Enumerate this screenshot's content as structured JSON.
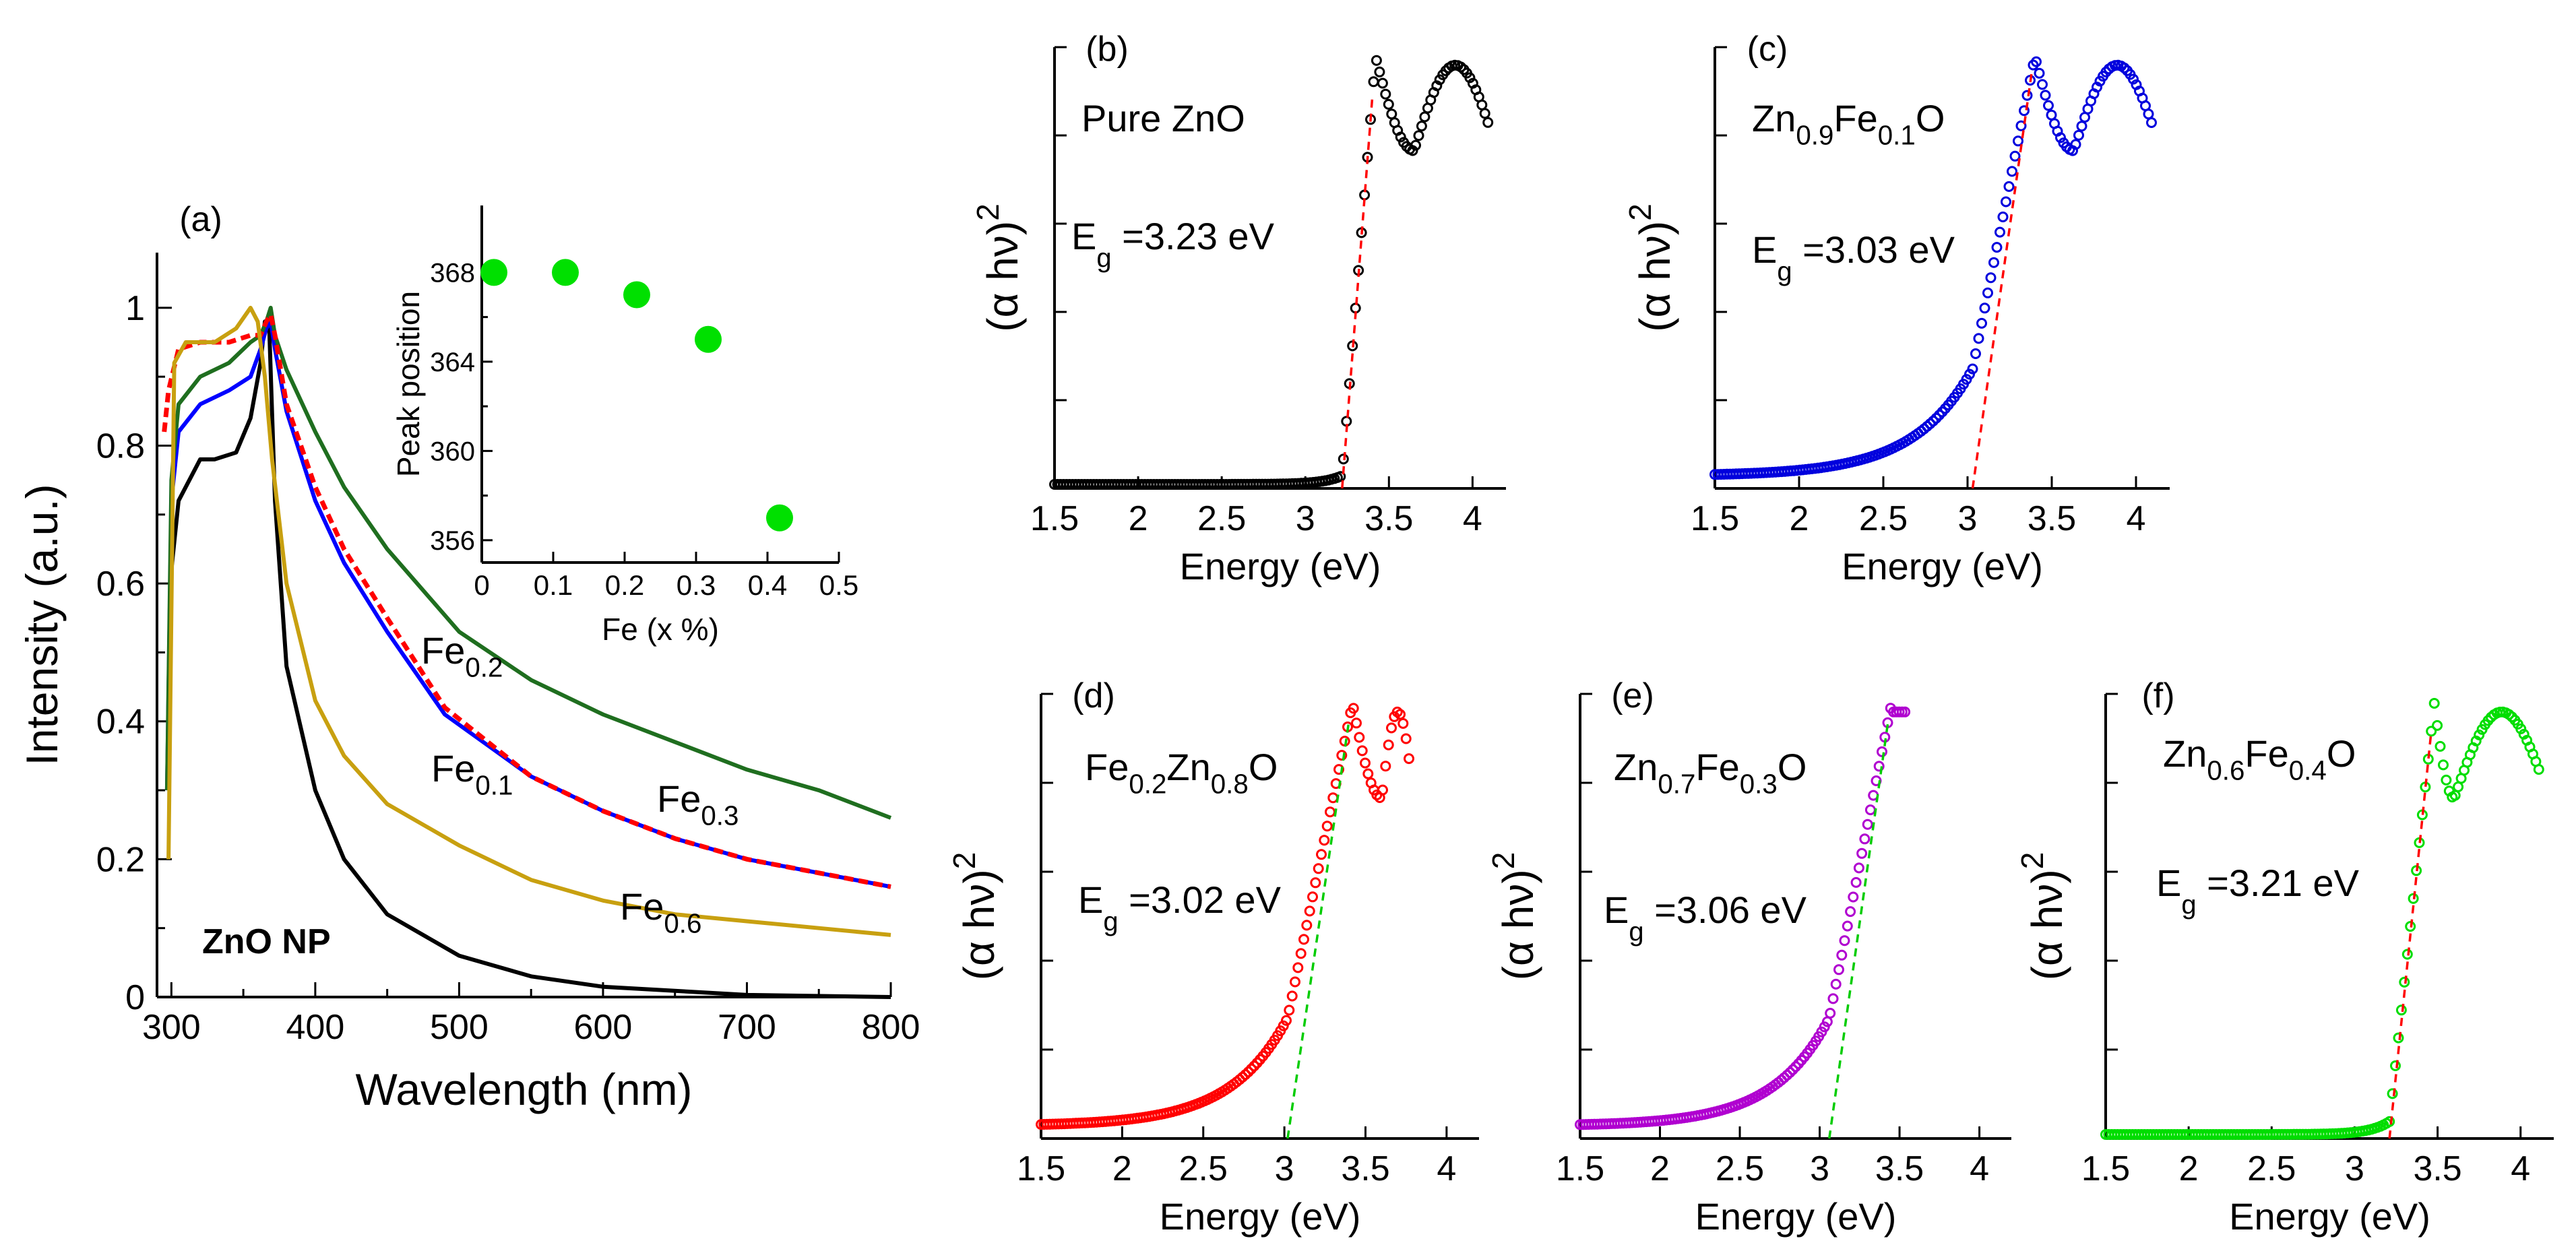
{
  "figure": {
    "panels": [
      {
        "id": "a",
        "label": "(a)",
        "xlabel": "Wavelength (nm)",
        "ylabel": "Intensity (a.u.)",
        "xticks": [
          "300",
          "400",
          "500",
          "600",
          "700",
          "800"
        ],
        "yticks": [
          "0",
          "0.2",
          "0.4",
          "0.6",
          "0.8",
          "1"
        ],
        "sample_label": "ZnO NP"
      },
      {
        "id": "inset",
        "xlabel": "Fe (x %)",
        "ylabel": "Peak position",
        "xticks": [
          "0",
          "0.1",
          "0.2",
          "0.3",
          "0.4",
          "0.5"
        ],
        "yticks": [
          "356",
          "360",
          "364",
          "368"
        ]
      },
      {
        "id": "b",
        "label": "(b)",
        "sample": "Pure ZnO",
        "eg": "3.23 eV",
        "xlabel": "Energy (eV)",
        "ylabel": "(α hν)",
        "xticks": [
          "1.5",
          "2",
          "2.5",
          "3",
          "3.5",
          "4"
        ]
      },
      {
        "id": "c",
        "label": "(c)",
        "sample_parts": [
          "Zn",
          "0.9",
          "Fe",
          "0.1",
          "O"
        ],
        "eg": "3.03 eV",
        "xlabel": "Energy (eV)",
        "ylabel": "(α hν)",
        "xticks": [
          "1.5",
          "2",
          "2.5",
          "3",
          "3.5",
          "4"
        ]
      },
      {
        "id": "d",
        "label": "(d)",
        "sample_parts": [
          "Fe",
          "0.2",
          "Zn",
          "0.8",
          "O"
        ],
        "eg": "3.02 eV",
        "xlabel": "Energy (eV)",
        "ylabel": "(α hν)",
        "xticks": [
          "1.5",
          "2",
          "2.5",
          "3",
          "3.5",
          "4"
        ]
      },
      {
        "id": "e",
        "label": "(e)",
        "sample_parts": [
          "Zn",
          "0.7",
          "Fe",
          "0.3",
          "O"
        ],
        "eg": "3.06 eV",
        "xlabel": "Energy (eV)",
        "ylabel": "(α hν)",
        "xticks": [
          "1.5",
          "2",
          "2.5",
          "3",
          "3.5",
          "4"
        ]
      },
      {
        "id": "f",
        "label": "(f)",
        "sample_parts": [
          "Zn",
          "0.6",
          "Fe",
          "0.4",
          "O"
        ],
        "eg": "3.21 eV",
        "xlabel": "Energy (eV)",
        "ylabel": "(α hν)",
        "xticks": [
          "1.5",
          "2",
          "2.5",
          "3",
          "3.5",
          "4"
        ]
      }
    ],
    "eg_prefix": "E",
    "eg_sub": "g",
    "eg_eq": " =",
    "sq": "2"
  },
  "chart_data": [
    {
      "type": "line",
      "title": "(a)",
      "xlabel": "Wavelength (nm)",
      "ylabel": "Intensity (a.u.)",
      "xlim": [
        290,
        800
      ],
      "ylim": [
        0,
        1.08
      ],
      "series": [
        {
          "name": "ZnO",
          "color": "#000000",
          "x": [
            298,
            300,
            305,
            320,
            330,
            345,
            355,
            362,
            365,
            368,
            372,
            380,
            400,
            420,
            450,
            500,
            550,
            600,
            700,
            800
          ],
          "y": [
            0.3,
            0.62,
            0.72,
            0.78,
            0.78,
            0.79,
            0.84,
            0.92,
            0.98,
            0.97,
            0.72,
            0.48,
            0.3,
            0.2,
            0.12,
            0.06,
            0.03,
            0.015,
            0.003,
            0.0
          ]
        },
        {
          "name": "Fe0.1",
          "color": "#0000ff",
          "x": [
            297,
            300,
            305,
            320,
            340,
            355,
            362,
            366,
            369,
            372,
            380,
            400,
            420,
            450,
            490,
            550,
            600,
            650,
            700,
            750,
            800
          ],
          "y": [
            0.3,
            0.72,
            0.82,
            0.86,
            0.88,
            0.9,
            0.94,
            0.97,
            0.98,
            0.94,
            0.85,
            0.72,
            0.63,
            0.53,
            0.41,
            0.32,
            0.27,
            0.23,
            0.2,
            0.18,
            0.16
          ]
        },
        {
          "name": "Fe0.2",
          "color": "#1f6e1f",
          "x": [
            297,
            300,
            305,
            320,
            340,
            355,
            362,
            366,
            369,
            372,
            380,
            400,
            420,
            450,
            500,
            550,
            600,
            650,
            700,
            750,
            800
          ],
          "y": [
            0.3,
            0.75,
            0.86,
            0.9,
            0.92,
            0.95,
            0.96,
            0.98,
            1.0,
            0.96,
            0.91,
            0.82,
            0.74,
            0.65,
            0.53,
            0.46,
            0.41,
            0.37,
            0.33,
            0.3,
            0.26
          ]
        },
        {
          "name": "Fe0.3",
          "color": "#ff0000",
          "x": [
            295,
            298,
            305,
            320,
            340,
            355,
            362,
            366,
            369,
            372,
            380,
            400,
            420,
            450,
            490,
            550,
            600,
            650,
            700,
            750,
            800
          ],
          "y": [
            0.82,
            0.88,
            0.94,
            0.95,
            0.95,
            0.96,
            0.96,
            0.98,
            0.99,
            0.96,
            0.86,
            0.74,
            0.65,
            0.55,
            0.42,
            0.32,
            0.27,
            0.23,
            0.2,
            0.18,
            0.16
          ]
        },
        {
          "name": "Fe0.6",
          "color": "#c8a010",
          "x": [
            298,
            302,
            310,
            330,
            345,
            355,
            360,
            365,
            370,
            380,
            400,
            420,
            450,
            500,
            550,
            600,
            650,
            700,
            750,
            800
          ],
          "y": [
            0.2,
            0.92,
            0.95,
            0.95,
            0.97,
            1.0,
            0.98,
            0.9,
            0.78,
            0.6,
            0.43,
            0.35,
            0.28,
            0.22,
            0.17,
            0.14,
            0.12,
            0.11,
            0.1,
            0.09
          ]
        }
      ],
      "annotations": [
        "Fe0.2",
        "Fe0.1",
        "Fe0.3",
        "Fe0.6",
        "ZnO NP"
      ]
    },
    {
      "type": "scatter",
      "title": "inset",
      "xlabel": "Fe (x %)",
      "ylabel": "Peak position",
      "xlim": [
        0,
        0.5
      ],
      "ylim": [
        355,
        371
      ],
      "x": [
        0.0,
        0.1,
        0.2,
        0.3,
        0.4
      ],
      "y": [
        368,
        368,
        367,
        365,
        357
      ],
      "color": "#00e000"
    },
    {
      "type": "scatter",
      "title": "(b) Pure ZnO",
      "xlabel": "Energy (eV)",
      "ylabel": "(αhν)^2",
      "xlim": [
        1.5,
        4.1
      ],
      "eg": 3.23,
      "color": "#000000",
      "fit_color": "#ff0000"
    },
    {
      "type": "scatter",
      "title": "(c) Zn0.9Fe0.1O",
      "xlabel": "Energy (eV)",
      "ylabel": "(αhν)^2",
      "xlim": [
        1.5,
        4.1
      ],
      "eg": 3.03,
      "color": "#0000dd",
      "fit_color": "#ff0000"
    },
    {
      "type": "scatter",
      "title": "(d) Fe0.2Zn0.8O",
      "xlabel": "Energy (eV)",
      "ylabel": "(αhν)^2",
      "xlim": [
        1.5,
        4.1
      ],
      "eg": 3.02,
      "color": "#ff0000",
      "fit_color": "#00cc00"
    },
    {
      "type": "scatter",
      "title": "(e) Zn0.7Fe0.3O",
      "xlabel": "Energy (eV)",
      "ylabel": "(αhν)^2",
      "xlim": [
        1.5,
        4.1
      ],
      "eg": 3.06,
      "color": "#b000d0",
      "fit_color": "#00cc00"
    },
    {
      "type": "scatter",
      "title": "(f) Zn0.6Fe0.4O",
      "xlabel": "Energy (eV)",
      "ylabel": "(αhν)^2",
      "xlim": [
        1.5,
        4.1
      ],
      "eg": 3.21,
      "color": "#00dd00",
      "fit_color": "#ff0000"
    }
  ]
}
